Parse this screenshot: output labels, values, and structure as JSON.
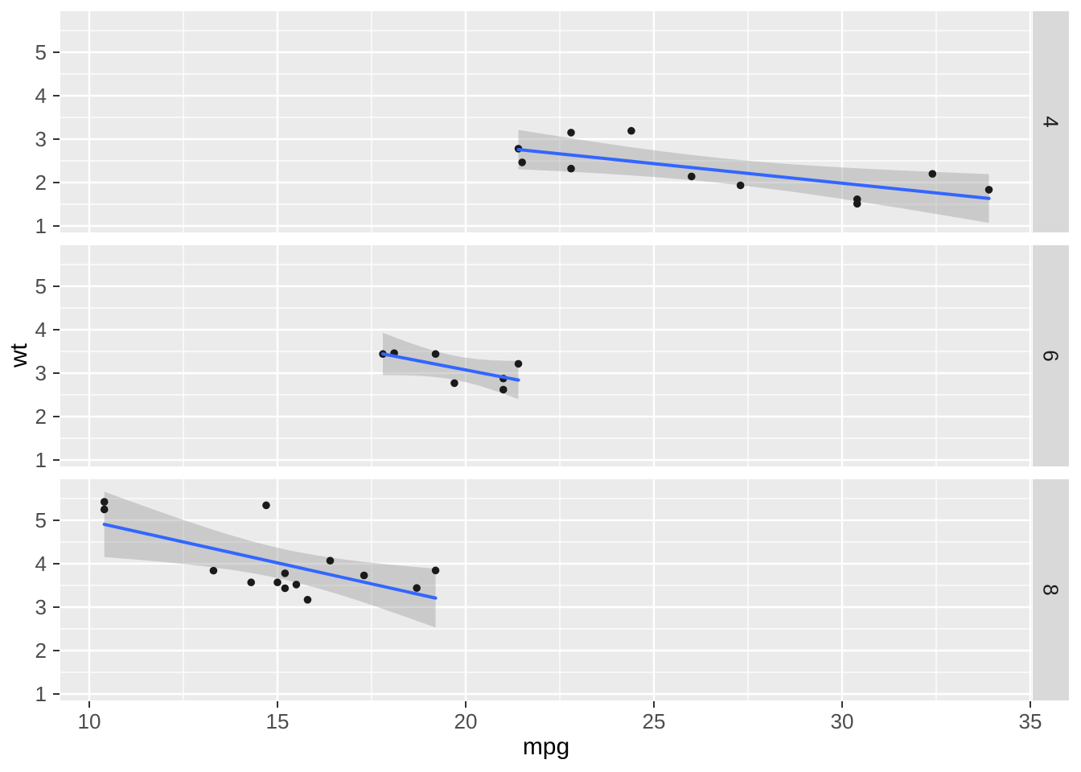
{
  "chart_data": {
    "type": "scatter",
    "xlabel": "mpg",
    "ylabel": "wt",
    "x_domain": [
      9.231,
      35.043
    ],
    "y_domain": [
      0.852,
      5.944
    ],
    "x_ticks": [
      10,
      15,
      20,
      25,
      30,
      35
    ],
    "x_minor_ticks": [
      12.5,
      17.5,
      22.5,
      27.5,
      32.5
    ],
    "y_ticks": [
      1,
      2,
      3,
      4,
      5
    ],
    "y_minor_ticks": [
      1.5,
      2.5,
      3.5,
      4.5,
      5.5
    ],
    "grid": true,
    "legend_position": "none",
    "facets": [
      {
        "label": "4",
        "points": [
          [
            22.8,
            2.32
          ],
          [
            24.4,
            3.19
          ],
          [
            22.8,
            3.15
          ],
          [
            32.4,
            2.2
          ],
          [
            30.4,
            1.615
          ],
          [
            33.9,
            1.835
          ],
          [
            21.5,
            2.465
          ],
          [
            27.3,
            1.935
          ],
          [
            26.0,
            2.14
          ],
          [
            30.4,
            1.513
          ],
          [
            21.4,
            2.78
          ]
        ],
        "smooth": {
          "method": "lm",
          "se": true,
          "x_range": [
            21.4,
            33.9
          ],
          "slope": -0.09008,
          "intercept": 4.6873,
          "n": 11,
          "x_mean": 26.664,
          "sxx": 203.39,
          "sigma": 0.4208,
          "t_crit": 2.262
        }
      },
      {
        "label": "6",
        "points": [
          [
            21.0,
            2.62
          ],
          [
            21.0,
            2.875
          ],
          [
            21.4,
            3.215
          ],
          [
            18.1,
            3.46
          ],
          [
            19.2,
            3.44
          ],
          [
            17.8,
            3.44
          ],
          [
            19.7,
            2.77
          ]
        ],
        "smooth": {
          "method": "lm",
          "se": true,
          "x_range": [
            17.8,
            21.4
          ],
          "slope": -0.16709,
          "intercept": 6.416,
          "n": 7,
          "x_mean": 19.7429,
          "sxx": 12.677,
          "sigma": 0.2856,
          "t_crit": 2.571
        }
      },
      {
        "label": "8",
        "points": [
          [
            18.7,
            3.44
          ],
          [
            14.3,
            3.57
          ],
          [
            16.4,
            4.07
          ],
          [
            17.3,
            3.73
          ],
          [
            15.2,
            3.78
          ],
          [
            10.4,
            5.25
          ],
          [
            10.4,
            5.424
          ],
          [
            14.7,
            5.345
          ],
          [
            15.5,
            3.52
          ],
          [
            15.2,
            3.435
          ],
          [
            13.3,
            3.84
          ],
          [
            19.2,
            3.845
          ],
          [
            15.8,
            3.17
          ],
          [
            15.0,
            3.57
          ]
        ],
        "smooth": {
          "method": "lm",
          "se": true,
          "x_range": [
            10.4,
            19.2
          ],
          "slope": -0.19292,
          "intercept": 6.9123,
          "n": 14,
          "x_mean": 15.1,
          "sxx": 85.2,
          "sigma": 0.6004,
          "t_crit": 2.179
        }
      }
    ],
    "colors": {
      "panel_bg": "#EBEBEB",
      "grid": "#FFFFFF",
      "strip_bg": "#D9D9D9",
      "strip_text": "#1A1A1A",
      "point": "#1A1A1A",
      "smooth_line": "#3366FF",
      "ribbon": "#999999",
      "ribbon_opacity": 0.4,
      "axis_text": "#4D4D4D",
      "tick_mark": "#333333",
      "axis_title": "#000000"
    }
  }
}
